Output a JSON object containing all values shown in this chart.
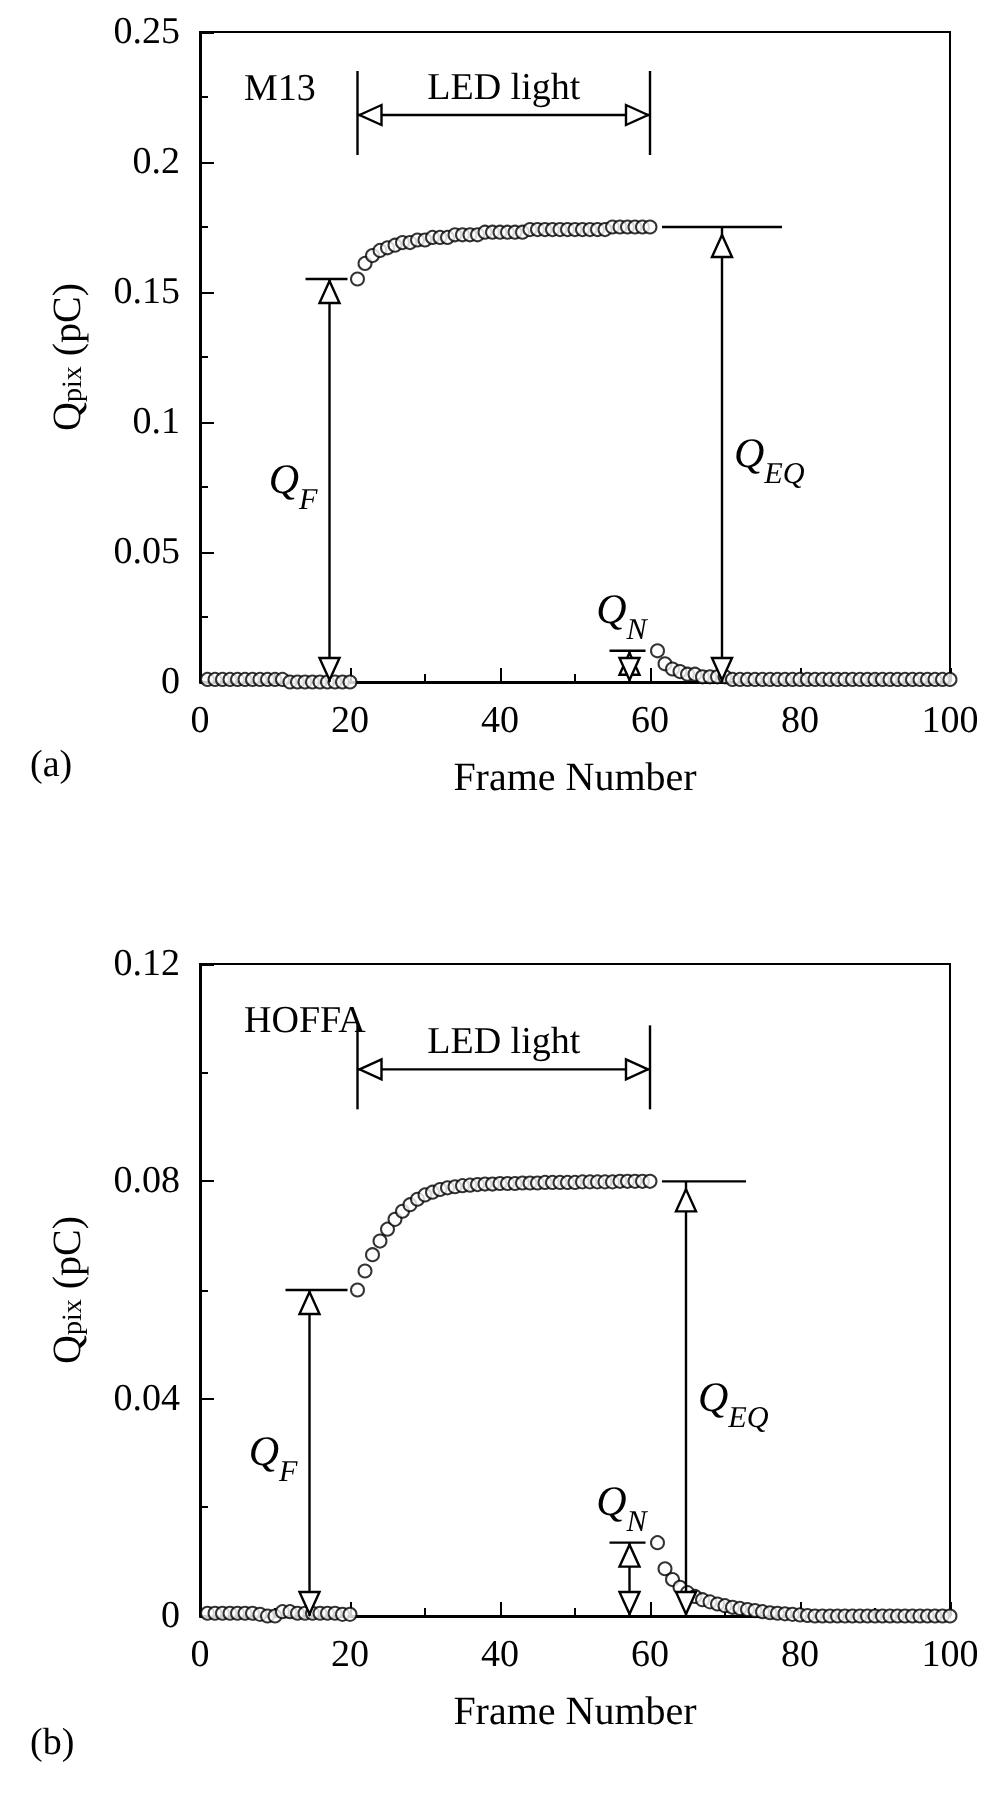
{
  "chart_data": [
    {
      "type": "scatter",
      "title": "M13",
      "xlabel": "Frame Number",
      "ylabel": "Q$_{pix}$ (pC)",
      "marker": "circle",
      "x": [
        1,
        2,
        3,
        4,
        5,
        6,
        7,
        8,
        9,
        10,
        11,
        12,
        13,
        14,
        15,
        16,
        17,
        18,
        19,
        20,
        21,
        22,
        23,
        24,
        25,
        26,
        27,
        28,
        29,
        30,
        31,
        32,
        33,
        34,
        35,
        36,
        37,
        38,
        39,
        40,
        41,
        42,
        43,
        44,
        45,
        46,
        47,
        48,
        49,
        50,
        51,
        52,
        53,
        54,
        55,
        56,
        57,
        58,
        59,
        60,
        61,
        62,
        63,
        64,
        65,
        66,
        67,
        68,
        69,
        70,
        71,
        72,
        73,
        74,
        75,
        76,
        77,
        78,
        79,
        80,
        81,
        82,
        83,
        84,
        85,
        86,
        87,
        88,
        89,
        90,
        91,
        92,
        93,
        94,
        95,
        96,
        97,
        98,
        99,
        100
      ],
      "series": [
        {
          "color": "#000000",
          "values": [
            0.001,
            0.001,
            0.001,
            0.001,
            0.001,
            0.001,
            0.001,
            0.001,
            0.001,
            0.001,
            0.001,
            0,
            0,
            0,
            0,
            0,
            0,
            0,
            0,
            0,
            0.155,
            0.161,
            0.164,
            0.166,
            0.167,
            0.168,
            0.169,
            0.169,
            0.17,
            0.17,
            0.171,
            0.171,
            0.171,
            0.172,
            0.172,
            0.172,
            0.172,
            0.173,
            0.173,
            0.173,
            0.173,
            0.173,
            0.173,
            0.174,
            0.174,
            0.174,
            0.174,
            0.174,
            0.174,
            0.174,
            0.174,
            0.174,
            0.174,
            0.174,
            0.175,
            0.175,
            0.175,
            0.175,
            0.175,
            0.175,
            0.012,
            0.007,
            0.005,
            0.004,
            0.003,
            0.003,
            0.002,
            0.002,
            0.002,
            0.002,
            0.001,
            0.001,
            0.001,
            0.001,
            0.001,
            0.001,
            0.001,
            0.001,
            0.001,
            0.001,
            0.001,
            0.001,
            0.001,
            0.001,
            0.001,
            0.001,
            0.001,
            0.001,
            0.001,
            0.001,
            0.001,
            0.001,
            0.001,
            0.001,
            0.001,
            0.001,
            0.001,
            0.001,
            0.001,
            0.001
          ]
        }
      ],
      "xlim": [
        0,
        100
      ],
      "xticks": [
        0,
        20,
        40,
        60,
        80,
        100
      ],
      "ylim": [
        0,
        0.25
      ],
      "yticks": [
        0,
        0.05,
        0.1,
        0.15,
        0.2,
        0.25
      ],
      "annotations": [
        "(a)",
        "LED light",
        "Q$_{F}$",
        "Q$_{EQ}$",
        "Q$_{N}$"
      ]
    },
    {
      "type": "scatter",
      "title": "HOFFA",
      "xlabel": "Frame Number",
      "ylabel": "Q$_{pix}$ (pC)",
      "marker": "circle",
      "x": [
        1,
        2,
        3,
        4,
        5,
        6,
        7,
        8,
        9,
        10,
        11,
        12,
        13,
        14,
        15,
        16,
        17,
        18,
        19,
        20,
        21,
        22,
        23,
        24,
        25,
        26,
        27,
        28,
        29,
        30,
        31,
        32,
        33,
        34,
        35,
        36,
        37,
        38,
        39,
        40,
        41,
        42,
        43,
        44,
        45,
        46,
        47,
        48,
        49,
        50,
        51,
        52,
        53,
        54,
        55,
        56,
        57,
        58,
        59,
        60,
        61,
        62,
        63,
        64,
        65,
        66,
        67,
        68,
        69,
        70,
        71,
        72,
        73,
        74,
        75,
        76,
        77,
        78,
        79,
        80,
        81,
        82,
        83,
        84,
        85,
        86,
        87,
        88,
        89,
        90,
        91,
        92,
        93,
        94,
        95,
        96,
        97,
        98,
        99,
        100
      ],
      "series": [
        {
          "color": "#000000",
          "values": [
            0.0005,
            0.0005,
            0.0005,
            0.0005,
            0.0005,
            0.0005,
            0.0005,
            0.0003,
            0,
            0,
            0.0008,
            0.0008,
            0.0005,
            0.0005,
            0.0005,
            0.0005,
            0.0005,
            0.0005,
            0.0003,
            0.0003,
            0.06,
            0.0635,
            0.0665,
            0.069,
            0.0712,
            0.073,
            0.0745,
            0.0757,
            0.0767,
            0.0775,
            0.078,
            0.0785,
            0.0788,
            0.079,
            0.0792,
            0.0793,
            0.0794,
            0.0795,
            0.0795,
            0.0796,
            0.0796,
            0.0796,
            0.0797,
            0.0797,
            0.0797,
            0.0798,
            0.0798,
            0.0798,
            0.0798,
            0.0798,
            0.0799,
            0.0799,
            0.0799,
            0.0799,
            0.0799,
            0.08,
            0.08,
            0.08,
            0.08,
            0.08,
            0.0135,
            0.0087,
            0.0067,
            0.0053,
            0.0043,
            0.0036,
            0.003,
            0.0026,
            0.0022,
            0.0019,
            0.0016,
            0.0014,
            0.0012,
            0.001,
            0.0008,
            0.0006,
            0.0005,
            0.0004,
            0.0003,
            0.0002,
            0.0001,
            0,
            0,
            0,
            0,
            0,
            0,
            0,
            0,
            0,
            0,
            0,
            0,
            0,
            0,
            0,
            0,
            0,
            0,
            0
          ]
        }
      ],
      "xlim": [
        0,
        100
      ],
      "xticks": [
        0,
        20,
        40,
        60,
        80,
        100
      ],
      "ylim": [
        0,
        0.12
      ],
      "yticks": [
        0,
        0.04,
        0.08,
        0.12
      ],
      "annotations": [
        "(b)",
        "LED light",
        "Q$_{F}$",
        "Q$_{EQ}$",
        "Q$_{N}$"
      ]
    }
  ]
}
